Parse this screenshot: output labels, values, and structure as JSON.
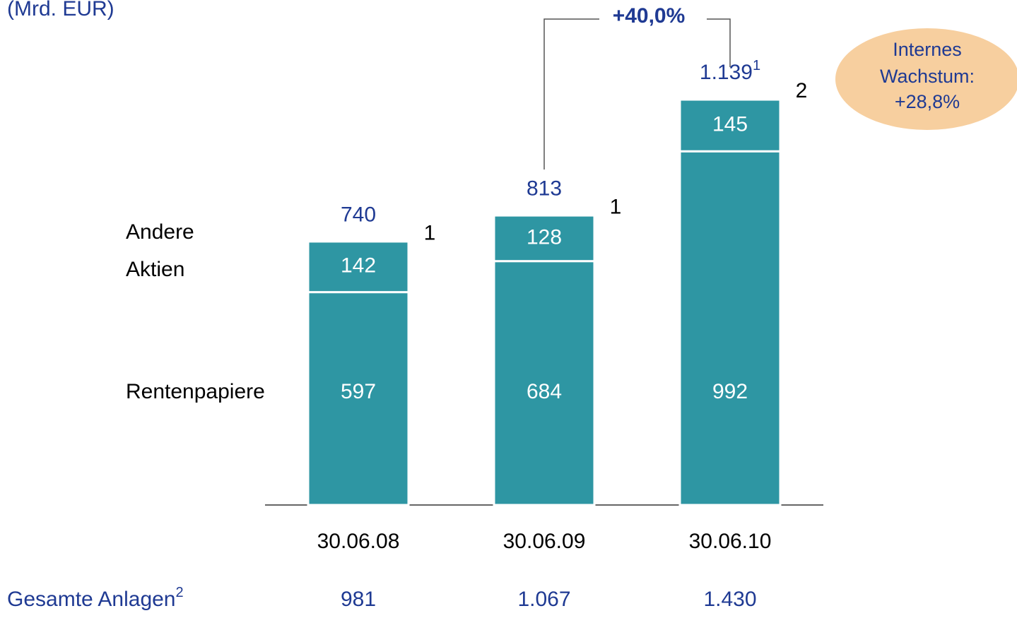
{
  "chart_data": {
    "type": "stacked_bar",
    "title": "(Mrd. EUR)",
    "categories": [
      "30.06.08",
      "30.06.09",
      "30.06.10"
    ],
    "series": [
      {
        "name": "Rentenpapiere",
        "color": "#2e96a3",
        "values": [
          597,
          684,
          992
        ]
      },
      {
        "name": "Aktien",
        "color": "#2e96a3",
        "values": [
          142,
          128,
          145
        ]
      },
      {
        "name": "Andere",
        "color": "#2e96a3",
        "values": [
          1,
          1,
          2
        ]
      }
    ],
    "totals": {
      "values": [
        740,
        813,
        1139
      ],
      "value_labels": [
        "740",
        "813",
        "1.139"
      ],
      "footnote_marks": [
        null,
        null,
        "1"
      ]
    },
    "growth_annotation": "+40,0%",
    "internal_growth": [
      "Internes",
      "Wachstum:",
      "+28,8%"
    ],
    "total_assets": {
      "label": "Gesamte Anlagen",
      "footnote": "2",
      "values": [
        981,
        1067,
        1430
      ],
      "value_labels": [
        "981",
        "1.067",
        "1.430"
      ]
    }
  }
}
